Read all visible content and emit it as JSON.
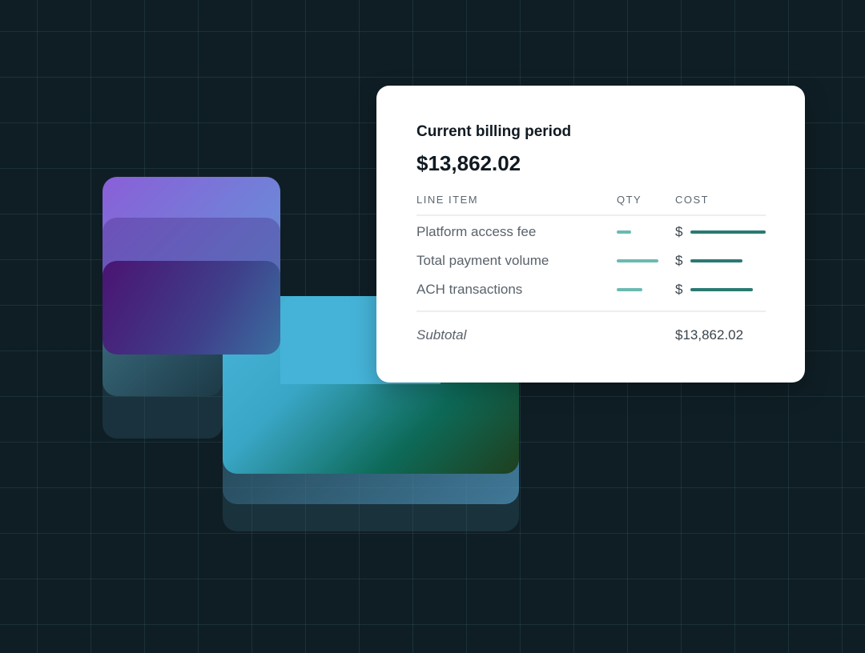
{
  "billing_card": {
    "title": "Current billing period",
    "total": "$13,862.02",
    "columns": {
      "line_item": "LINE ITEM",
      "qty": "QTY",
      "cost": "COST"
    },
    "rows": [
      {
        "label": "Platform access fee",
        "currency": "$"
      },
      {
        "label": "Total payment volume",
        "currency": "$"
      },
      {
        "label": "ACH transactions",
        "currency": "$"
      }
    ],
    "subtotal_label": "Subtotal",
    "subtotal_value": "$13,862.02"
  },
  "colors": {
    "background": "#0f1e25",
    "qty_bar": "#6bbab2",
    "cost_bar": "#2a7a72",
    "purple": "#8a5fd8",
    "cyan": "#3fb0d0",
    "green": "#0a6048"
  }
}
